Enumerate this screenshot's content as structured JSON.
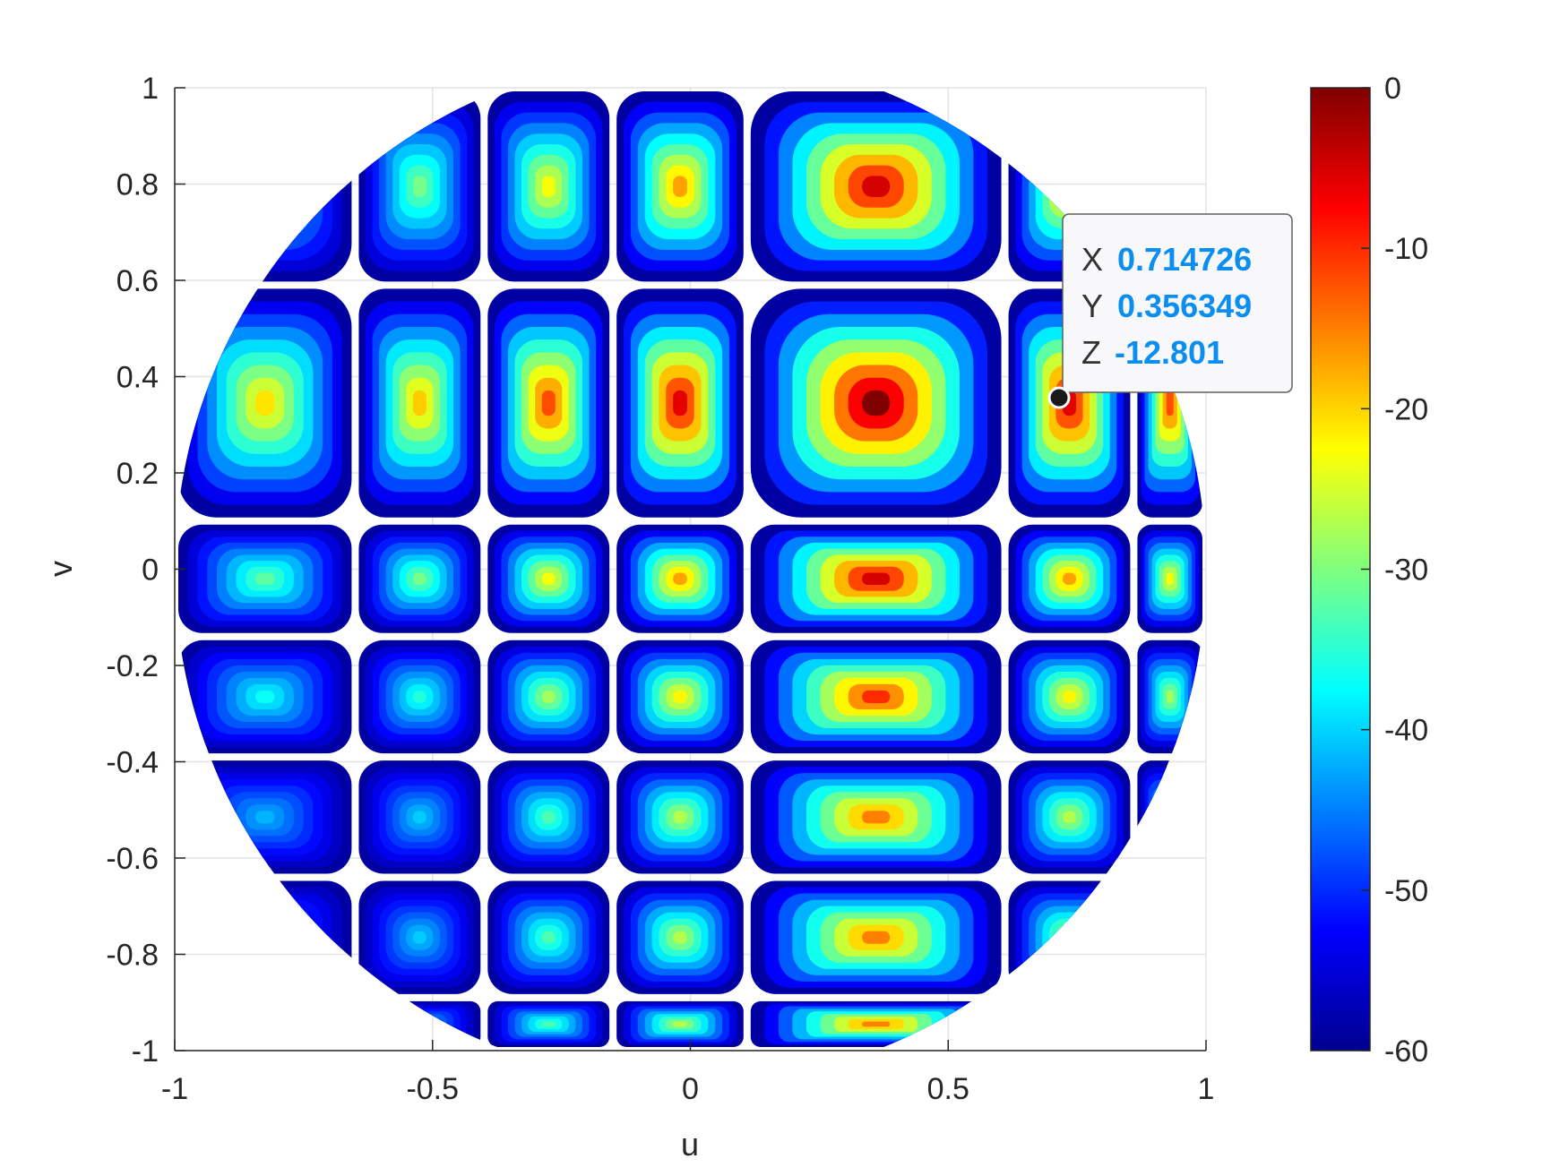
{
  "chart_data": {
    "type": "heatmap",
    "title": "",
    "xlabel": "u",
    "ylabel": "v",
    "xlim": [
      -1,
      1
    ],
    "ylim": [
      -1,
      1
    ],
    "x_ticks": [
      "-1",
      "-0.5",
      "0",
      "0.5",
      "1"
    ],
    "y_ticks": [
      "1",
      "0.8",
      "0.6",
      "0.4",
      "0.2",
      "0",
      "-0.2",
      "-0.4",
      "-0.6",
      "-0.8",
      "-1"
    ],
    "colorbar": {
      "colormap": "jet",
      "clim": [
        -60,
        0
      ],
      "ticks": [
        "0",
        "-10",
        "-20",
        "-30",
        "-40",
        "-50",
        "-60"
      ]
    },
    "grid": true,
    "domain": "unit disk u^2 + v^2 <= 1",
    "null_lines_u": [
      -0.65,
      -0.4,
      -0.15,
      0.11,
      0.61,
      0.86
    ],
    "null_lines_v": [
      0.59,
      0.1,
      -0.14,
      -0.39,
      -0.64,
      -0.89
    ],
    "main_beam": {
      "u": 0.35,
      "v": 0.35,
      "value": 0
    },
    "datatip": {
      "x_key": "X",
      "x": "0.714726",
      "y_key": "Y",
      "y": "0.356349",
      "z_key": "Z",
      "z": "-12.801"
    }
  }
}
